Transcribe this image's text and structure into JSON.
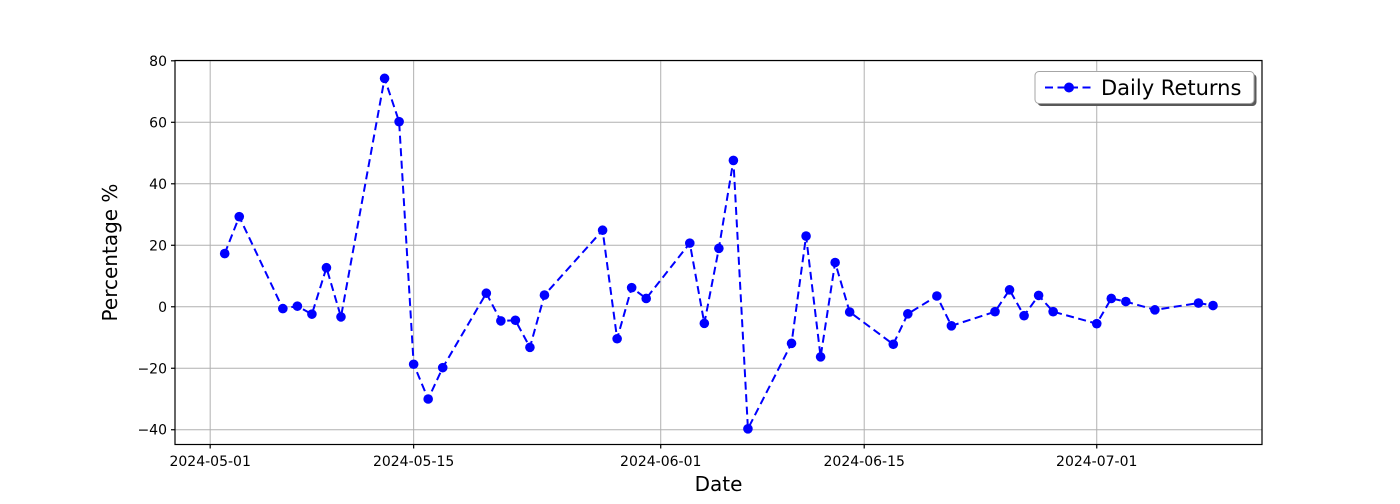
{
  "chart_data": {
    "type": "line",
    "title": "",
    "xlabel": "Date",
    "ylabel": "Percentage %",
    "legend": {
      "label": "Daily Returns",
      "position": "upper right"
    },
    "grid": true,
    "line_style": {
      "color": "#0000ff",
      "dash": "dashed",
      "marker": "circle"
    },
    "colors": {
      "line": "#0000ff",
      "grid": "#b0b0b0",
      "spine": "#000000",
      "legend_border": "#a6a6a6",
      "legend_shadow": "#595959"
    },
    "x": [
      "2024-05-02",
      "2024-05-03",
      "2024-05-06",
      "2024-05-07",
      "2024-05-08",
      "2024-05-09",
      "2024-05-10",
      "2024-05-13",
      "2024-05-14",
      "2024-05-15",
      "2024-05-16",
      "2024-05-17",
      "2024-05-20",
      "2024-05-21",
      "2024-05-22",
      "2024-05-23",
      "2024-05-24",
      "2024-05-28",
      "2024-05-29",
      "2024-05-30",
      "2024-05-31",
      "2024-06-03",
      "2024-06-04",
      "2024-06-05",
      "2024-06-06",
      "2024-06-07",
      "2024-06-10",
      "2024-06-11",
      "2024-06-12",
      "2024-06-13",
      "2024-06-14",
      "2024-06-17",
      "2024-06-18",
      "2024-06-20",
      "2024-06-21",
      "2024-06-24",
      "2024-06-25",
      "2024-06-26",
      "2024-06-27",
      "2024-06-28",
      "2024-07-01",
      "2024-07-02",
      "2024-07-03",
      "2024-07-05",
      "2024-07-08",
      "2024-07-09"
    ],
    "y": [
      17.3,
      29.3,
      -0.6,
      0.2,
      -2.4,
      12.7,
      -3.3,
      74.3,
      60.2,
      -18.7,
      -30.0,
      -19.8,
      4.4,
      -4.6,
      -4.4,
      -13.2,
      3.8,
      24.9,
      -10.4,
      6.2,
      2.7,
      20.7,
      -5.4,
      19.0,
      47.6,
      -39.7,
      -11.9,
      23.0,
      -16.3,
      14.4,
      -1.7,
      -12.2,
      -2.3,
      3.5,
      -6.2,
      -1.6,
      5.5,
      -2.9,
      3.7,
      -1.6,
      -5.5,
      2.7,
      1.7,
      -1.0,
      1.2,
      0.4
    ],
    "x_ticks": [
      "2024-05-01",
      "2024-05-15",
      "2024-06-01",
      "2024-06-15",
      "2024-07-01"
    ],
    "y_ticks": [
      -40,
      -20,
      0,
      20,
      40,
      60,
      80
    ],
    "xlim_days_from_2024_05_01": [
      -2.42,
      72.37
    ],
    "ylim": [
      -44.8,
      80.1
    ]
  }
}
